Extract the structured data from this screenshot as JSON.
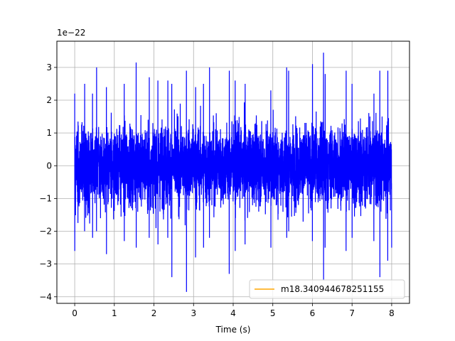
{
  "chart_data": {
    "type": "line",
    "title": "",
    "xlabel": "Time (s)",
    "ylabel": "",
    "y_scale_label": "1e−22",
    "xlim": [
      -0.45,
      8.45
    ],
    "ylim": [
      -4.2,
      3.8
    ],
    "x_ticks": [
      0,
      1,
      2,
      3,
      4,
      5,
      6,
      7,
      8
    ],
    "x_tick_labels": [
      "0",
      "1",
      "2",
      "3",
      "4",
      "5",
      "6",
      "7",
      "8"
    ],
    "y_ticks": [
      -4,
      -3,
      -2,
      -1,
      0,
      1,
      2,
      3
    ],
    "y_tick_labels": [
      "−4",
      "−3",
      "−2",
      "−1",
      "0",
      "1",
      "2",
      "3"
    ],
    "grid": true,
    "legend_placement": "lower-right",
    "series": [
      {
        "name": "",
        "color": "#0000ff",
        "description": "noise strain time series, 0 to 8 s, amplitude roughly ±2e-22 with spikes",
        "x": [
          0.0,
          0.25,
          0.45,
          0.55,
          0.8,
          1.25,
          1.55,
          1.88,
          2.1,
          2.35,
          2.45,
          2.82,
          3.05,
          3.25,
          3.4,
          3.9,
          4.05,
          4.3,
          4.95,
          5.35,
          5.4,
          6.0,
          6.28,
          6.32,
          6.85,
          7.0,
          7.55,
          7.7,
          7.9,
          8.0
        ],
        "y_peaks": [
          2.2,
          2.5,
          2.2,
          3.0,
          2.4,
          2.5,
          3.15,
          2.7,
          2.6,
          2.6,
          2.5,
          2.9,
          2.4,
          2.5,
          3.0,
          2.9,
          2.6,
          2.5,
          2.3,
          3.0,
          2.9,
          3.1,
          3.45,
          2.8,
          2.9,
          2.5,
          2.2,
          2.9,
          2.9,
          2.5
        ],
        "y_troughs": [
          -2.6,
          -2.0,
          -2.2,
          -2.0,
          -2.7,
          -2.3,
          -2.5,
          -2.2,
          -2.4,
          -2.2,
          -3.4,
          -3.85,
          -2.8,
          -2.5,
          -2.2,
          -3.3,
          -2.6,
          -2.4,
          -2.5,
          -2.2,
          -2.0,
          -2.3,
          -3.5,
          -2.5,
          -2.6,
          -2.2,
          -2.3,
          -3.4,
          -2.9,
          -2.5
        ]
      },
      {
        "name": "m18.340944678251155",
        "color": "#ffa500",
        "x": [],
        "values": []
      }
    ]
  }
}
